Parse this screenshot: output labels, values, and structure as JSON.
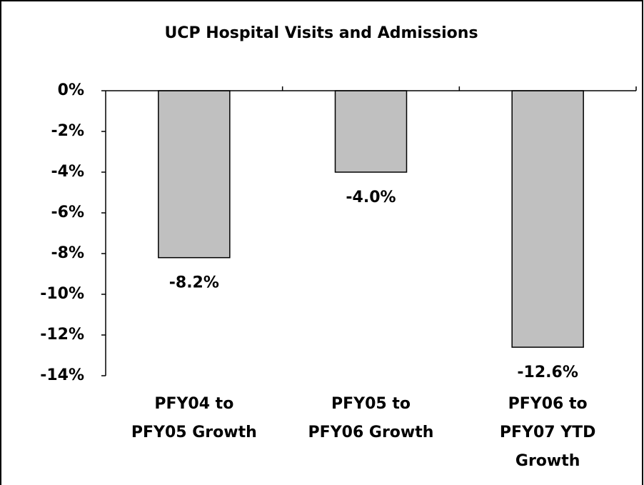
{
  "chart_data": {
    "type": "bar",
    "title": "UCP Hospital Visits and Admissions",
    "categories": [
      "PFY04 to PFY05 Growth",
      "PFY05 to PFY06 Growth",
      "PFY06 to PFY07 YTD Growth"
    ],
    "values": [
      -8.2,
      -4.0,
      -12.6
    ],
    "value_labels": [
      "-8.2%",
      "-4.0%",
      "-12.6%"
    ],
    "color": "#c0c0c0",
    "ylim": [
      -14,
      0
    ],
    "yticks": [
      {
        "value": 0,
        "label": "0%"
      },
      {
        "value": -2,
        "label": "-2%"
      },
      {
        "value": -4,
        "label": "-4%"
      },
      {
        "value": -6,
        "label": "-6%"
      },
      {
        "value": -8,
        "label": "-8%"
      },
      {
        "value": -10,
        "label": "-10%"
      },
      {
        "value": -12,
        "label": "-12%"
      },
      {
        "value": -14,
        "label": "-14%"
      }
    ],
    "grid": false
  }
}
